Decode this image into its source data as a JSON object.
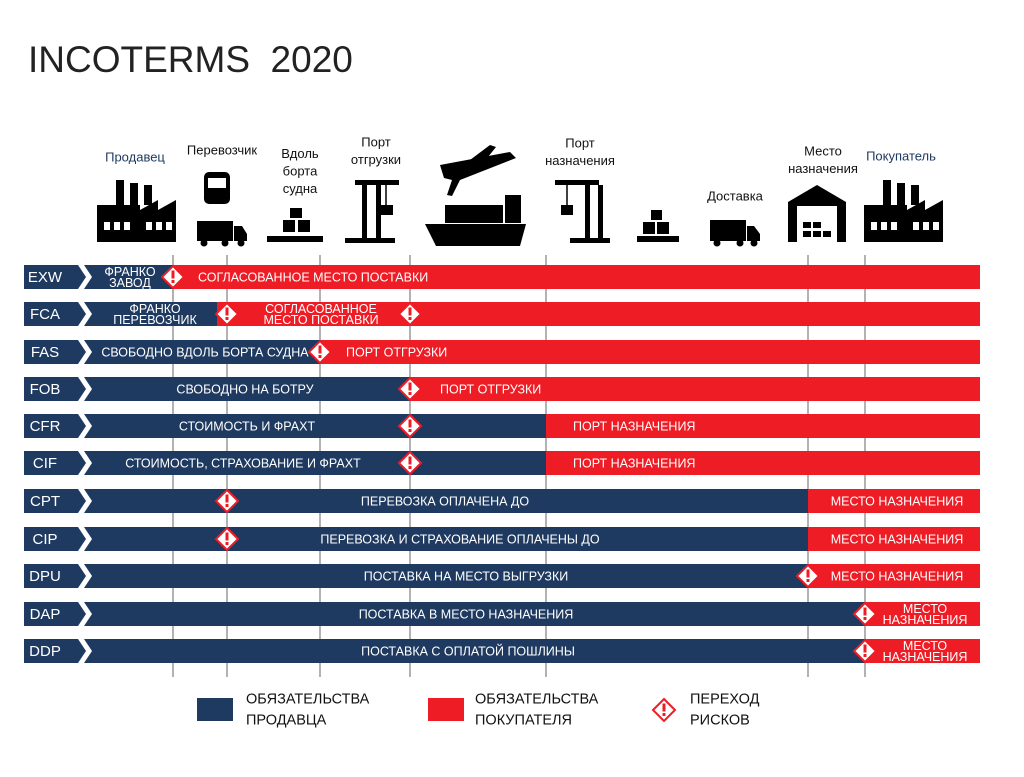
{
  "title": "INCOTERMS  2020",
  "stages": [
    {
      "label": [
        "Продавец"
      ]
    },
    {
      "label": [
        "Перевозчик"
      ]
    },
    {
      "label": [
        "Вдоль",
        "борта",
        "судна"
      ]
    },
    {
      "label": [
        "Порт",
        "отгрузки"
      ]
    },
    {
      "label": [
        "Порт",
        "назначения"
      ]
    },
    {
      "label": [
        "Доставка"
      ]
    },
    {
      "label": [
        "Место",
        "назначения"
      ]
    },
    {
      "label": [
        "Покупатель"
      ]
    }
  ],
  "rows": [
    {
      "code": "EXW",
      "seller": [
        "ФРАНКО",
        "ЗАВОД"
      ],
      "buyer": [
        "СОГЛАСОВАННОЕ МЕСТО ПОСТАВКИ"
      ]
    },
    {
      "code": "FCA",
      "seller": [
        "ФРАНКО",
        "ПЕРЕВОЗЧИК"
      ],
      "buyer": [
        "СОГЛАСОВАННОЕ",
        "МЕСТО ПОСТАВКИ"
      ]
    },
    {
      "code": "FAS",
      "seller": [
        "СВОБОДНО ВДОЛЬ БОРТА СУДНА"
      ],
      "buyer": [
        "ПОРТ ОТГРУЗКИ"
      ]
    },
    {
      "code": "FOB",
      "seller": [
        "СВОБОДНО НА БОТРУ"
      ],
      "buyer": [
        "ПОРТ ОТГРУЗКИ"
      ]
    },
    {
      "code": "CFR",
      "seller": [
        "СТОИМОСТЬ И ФРАХТ"
      ],
      "buyer": [
        "ПОРТ НАЗНАЧЕНИЯ"
      ]
    },
    {
      "code": "CIF",
      "seller": [
        "СТОИМОСТЬ, СТРАХОВАНИЕ И ФРАХТ"
      ],
      "buyer": [
        "ПОРТ НАЗНАЧЕНИЯ"
      ]
    },
    {
      "code": "CPT",
      "seller": [
        "ПЕРЕВОЗКА ОПЛАЧЕНА ДО"
      ],
      "buyer": [
        "МЕСТО НАЗНАЧЕНИЯ"
      ]
    },
    {
      "code": "CIP",
      "seller": [
        "ПЕРЕВОЗКА И СТРАХОВАНИЕ ОПЛАЧЕНЫ ДО"
      ],
      "buyer": [
        "МЕСТО НАЗНАЧЕНИЯ"
      ]
    },
    {
      "code": "DPU",
      "seller": [
        "ПОСТАВКА НА МЕСТО ВЫГРУЗКИ"
      ],
      "buyer": [
        "МЕСТО НАЗНАЧЕНИЯ"
      ]
    },
    {
      "code": "DAP",
      "seller": [
        "ПОСТАВКА В МЕСТО НАЗНАЧЕНИЯ"
      ],
      "buyer": [
        "МЕСТО",
        "НАЗНАЧЕНИЯ"
      ]
    },
    {
      "code": "DDP",
      "seller": [
        "ПОСТАВКА С ОПЛАТОЙ ПОШЛИНЫ"
      ],
      "buyer": [
        "МЕСТО",
        "НАЗНАЧЕНИЯ"
      ]
    }
  ],
  "legend": {
    "seller": [
      "ОБЯЗАТЕЛЬСТВА",
      "ПРОДАВЦА"
    ],
    "buyer": [
      "ОБЯЗАТЕЛЬСТВА",
      "ПОКУПАТЕЛЯ"
    ],
    "risk": [
      "ПЕРЕХОД",
      "РИСКОВ"
    ]
  }
}
